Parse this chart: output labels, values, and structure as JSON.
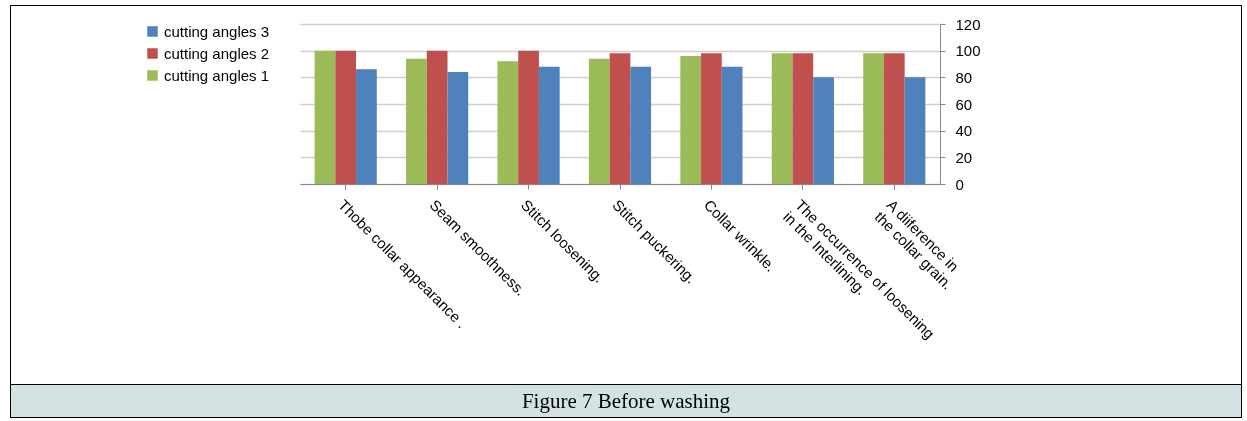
{
  "chart_data": {
    "type": "bar",
    "categories": [
      "Thobe collar appearance .",
      "Seam smoothness.",
      "Stitch loosening.",
      "Stitch puckering.",
      "Collar wrinkle.",
      "The occurrence of loosening in the Interlining.",
      "A diiference in the collar grain."
    ],
    "series": [
      {
        "name": "cutting angles 1",
        "color": "#9bbb59",
        "values": [
          100,
          94,
          92,
          94,
          96,
          98,
          98
        ]
      },
      {
        "name": "cutting angles 2",
        "color": "#c0504d",
        "values": [
          100,
          100,
          100,
          98,
          98,
          98,
          98
        ]
      },
      {
        "name": "cutting angles 3",
        "color": "#4f81bd",
        "values": [
          86,
          84,
          88,
          88,
          88,
          80,
          80
        ]
      }
    ],
    "ylim": [
      0,
      120
    ],
    "yticks": [
      0,
      20,
      40,
      60,
      80,
      100,
      120
    ],
    "grid": "y",
    "legend": "left",
    "annotations": [
      "Figure 7 Before washing"
    ]
  }
}
